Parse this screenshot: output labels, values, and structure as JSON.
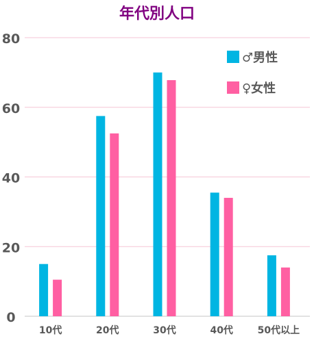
{
  "chart_data": {
    "type": "bar",
    "title": "年代別人口",
    "categories": [
      "10代",
      "20代",
      "30代",
      "40代",
      "50代以上"
    ],
    "series": [
      {
        "name": "♂男性",
        "color": "#00B5E2",
        "values": [
          15,
          57.5,
          70,
          35.5,
          17.5
        ]
      },
      {
        "name": "♀女性",
        "color": "#FF5FA2",
        "values": [
          10.5,
          52.5,
          67.8,
          34,
          14
        ]
      }
    ],
    "ylim": [
      0,
      80
    ],
    "yticks": [
      0,
      20,
      40,
      60,
      80
    ],
    "xlabel": "",
    "ylabel": "",
    "grid": true,
    "legend": "top-right"
  },
  "colors": {
    "title": "#800080",
    "grid": "#F5C6D6",
    "axis": "#D9D9D9",
    "tick_text": "#595959"
  }
}
